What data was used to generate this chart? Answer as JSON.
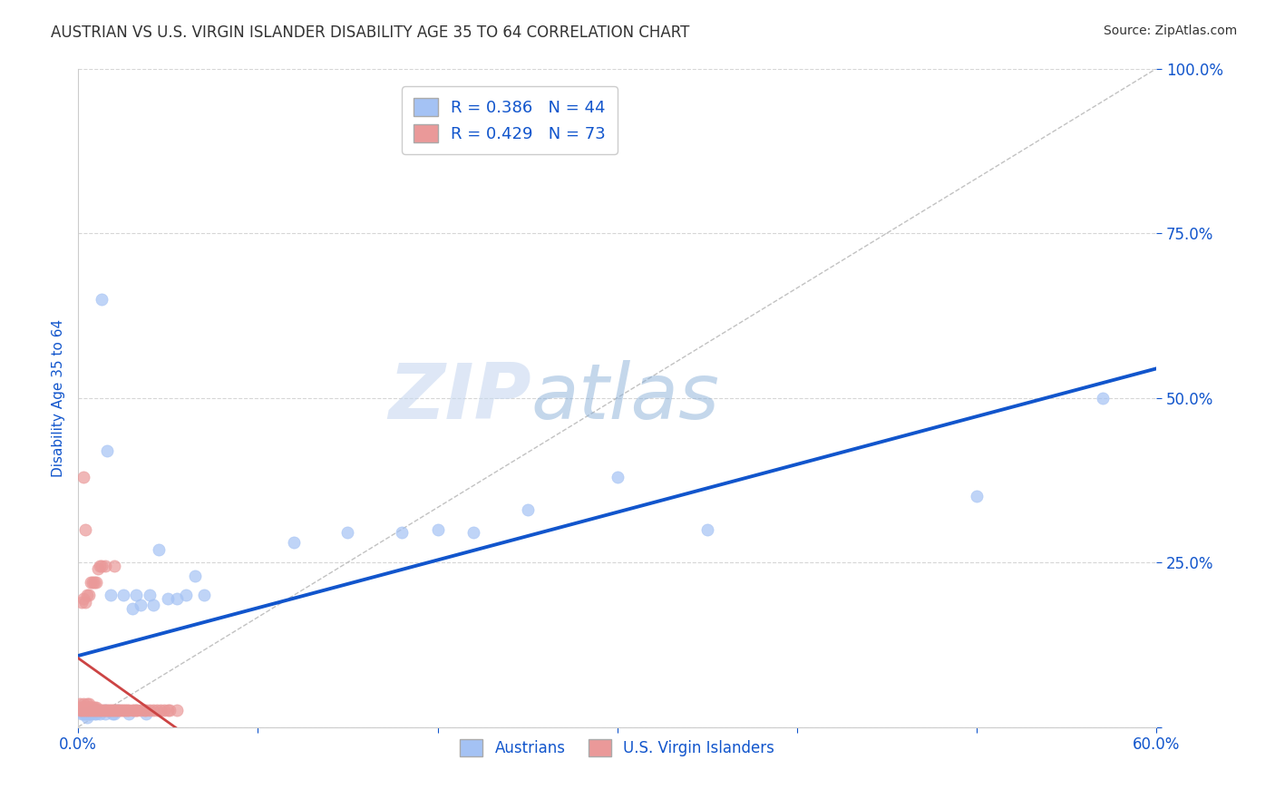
{
  "title": "AUSTRIAN VS U.S. VIRGIN ISLANDER DISABILITY AGE 35 TO 64 CORRELATION CHART",
  "source_text": "Source: ZipAtlas.com",
  "xlabel": "",
  "ylabel": "Disability Age 35 to 64",
  "xlim": [
    0.0,
    0.6
  ],
  "ylim": [
    0.0,
    1.0
  ],
  "xticks": [
    0.0,
    0.1,
    0.2,
    0.3,
    0.4,
    0.5,
    0.6
  ],
  "xticklabels": [
    "0.0%",
    "",
    "",
    "",
    "",
    "",
    "60.0%"
  ],
  "yticks": [
    0.0,
    0.25,
    0.5,
    0.75,
    1.0
  ],
  "yticklabels": [
    "",
    "25.0%",
    "50.0%",
    "75.0%",
    "100.0%"
  ],
  "austrians_x": [
    0.002,
    0.003,
    0.004,
    0.005,
    0.005,
    0.006,
    0.007,
    0.008,
    0.009,
    0.01,
    0.01,
    0.012,
    0.013,
    0.015,
    0.015,
    0.016,
    0.018,
    0.019,
    0.02,
    0.022,
    0.025,
    0.028,
    0.03,
    0.032,
    0.035,
    0.038,
    0.04,
    0.042,
    0.045,
    0.05,
    0.055,
    0.06,
    0.065,
    0.07,
    0.12,
    0.15,
    0.18,
    0.2,
    0.22,
    0.25,
    0.3,
    0.35,
    0.5,
    0.57
  ],
  "austrians_y": [
    0.02,
    0.02,
    0.02,
    0.015,
    0.02,
    0.02,
    0.02,
    0.025,
    0.02,
    0.02,
    0.025,
    0.02,
    0.65,
    0.02,
    0.025,
    0.42,
    0.2,
    0.02,
    0.02,
    0.025,
    0.2,
    0.02,
    0.18,
    0.2,
    0.185,
    0.02,
    0.2,
    0.185,
    0.27,
    0.195,
    0.195,
    0.2,
    0.23,
    0.2,
    0.28,
    0.295,
    0.295,
    0.3,
    0.295,
    0.33,
    0.38,
    0.3,
    0.35,
    0.5
  ],
  "virgin_islanders_x": [
    0.001,
    0.001,
    0.001,
    0.002,
    0.002,
    0.002,
    0.003,
    0.003,
    0.003,
    0.003,
    0.004,
    0.004,
    0.004,
    0.005,
    0.005,
    0.005,
    0.005,
    0.006,
    0.006,
    0.006,
    0.006,
    0.007,
    0.007,
    0.007,
    0.008,
    0.008,
    0.008,
    0.009,
    0.009,
    0.009,
    0.01,
    0.01,
    0.01,
    0.011,
    0.011,
    0.012,
    0.012,
    0.013,
    0.013,
    0.014,
    0.015,
    0.015,
    0.016,
    0.017,
    0.018,
    0.019,
    0.02,
    0.02,
    0.021,
    0.022,
    0.023,
    0.024,
    0.025,
    0.026,
    0.027,
    0.028,
    0.03,
    0.031,
    0.032,
    0.033,
    0.035,
    0.037,
    0.038,
    0.04,
    0.042,
    0.044,
    0.046,
    0.048,
    0.05,
    0.051,
    0.003,
    0.004,
    0.055
  ],
  "virgin_islanders_y": [
    0.025,
    0.03,
    0.035,
    0.025,
    0.03,
    0.19,
    0.025,
    0.03,
    0.035,
    0.195,
    0.025,
    0.03,
    0.19,
    0.025,
    0.03,
    0.035,
    0.2,
    0.025,
    0.03,
    0.035,
    0.2,
    0.025,
    0.03,
    0.22,
    0.025,
    0.03,
    0.22,
    0.025,
    0.03,
    0.22,
    0.025,
    0.03,
    0.22,
    0.025,
    0.24,
    0.025,
    0.245,
    0.025,
    0.245,
    0.025,
    0.025,
    0.245,
    0.025,
    0.025,
    0.025,
    0.025,
    0.025,
    0.245,
    0.025,
    0.025,
    0.025,
    0.025,
    0.025,
    0.025,
    0.025,
    0.025,
    0.025,
    0.025,
    0.025,
    0.025,
    0.025,
    0.025,
    0.025,
    0.025,
    0.025,
    0.025,
    0.025,
    0.025,
    0.025,
    0.025,
    0.38,
    0.3,
    0.025
  ],
  "austrian_color": "#a4c2f4",
  "virgin_color": "#ea9999",
  "austrian_line_color": "#1155cc",
  "virgin_line_color": "#cc4444",
  "r_austrian": 0.386,
  "n_austrian": 44,
  "r_virgin": 0.429,
  "n_virgin": 73,
  "watermark_zip": "ZIP",
  "watermark_atlas": "atlas",
  "background_color": "#ffffff",
  "title_color": "#333333",
  "axis_label_color": "#1155cc",
  "tick_color": "#1155cc",
  "source_color": "#333333",
  "legend_text_color": "#1155cc",
  "diag_line_color": "#bbbbbb",
  "grid_color": "#cccccc"
}
